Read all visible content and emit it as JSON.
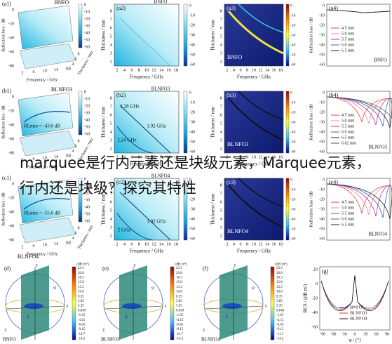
{
  "overlay_text": "marquee是行内元素还是块级元素，Marquee元素，行内还是块级？探究其特性",
  "ticks": {
    "freq": [
      "2",
      "4",
      "6",
      "8",
      "10",
      "12",
      "14",
      "16",
      "18"
    ],
    "freq_3d": [
      "2",
      "6",
      "10",
      "14",
      "18"
    ],
    "rl_3d": [
      "0",
      "-20",
      "-40",
      "-60",
      "-80"
    ],
    "thick_3d": [
      "2",
      "4",
      "6",
      "8"
    ],
    "thickness": [
      "2",
      "3",
      "4",
      "5",
      "6",
      "7",
      "8"
    ],
    "rl": [
      "0",
      "-10",
      "-20",
      "-30",
      "-40",
      "-50",
      "-60"
    ]
  },
  "axis_titles": {
    "frequency": "Frequency / GHz",
    "thickness": "Thickness / mm",
    "reflection_loss": "Reflection loss / dB"
  },
  "rows": [
    {
      "sample": "BNFO",
      "panel_3d": {
        "label": "(a1)"
      },
      "panel_map": {
        "label": "(a2)"
      },
      "panel_dark": {
        "label": "(a3)"
      },
      "panel_curves": {
        "label": "(a4)",
        "legend": [
          "4.5 mm",
          "5.0 mm",
          "5.5 mm",
          "6.0 mm",
          "6.5 mm"
        ]
      }
    },
    {
      "sample": "BLNFO3",
      "panel_3d": {
        "label": "(b1)",
        "annotation": "RLmin = -43.6 dB"
      },
      "panel_map": {
        "label": "(b2)",
        "annotations": [
          "1.28 GHz",
          "1.92 GHz",
          "2.24 GHz"
        ]
      },
      "panel_dark": {
        "label": "(b3)"
      },
      "panel_curves": {
        "label": "(b4)",
        "legend": [
          "4.5 mm",
          "5.0 mm",
          "5.5 mm",
          "6.0 mm",
          "6.5 mm",
          "6.62 mm"
        ]
      }
    },
    {
      "sample": "BLNFO4",
      "panel_3d": {
        "label": "(c1)",
        "annotation": "RLmin = -55.6 dB"
      },
      "panel_map": {
        "label": "(c2)",
        "annotations": [
          "2 GHz",
          "1.92 GHz"
        ]
      },
      "panel_dark": {
        "label": "(c3)"
      },
      "panel_curves": {
        "label": "(c4)",
        "legend": [
          "4.5 mm",
          "5.0 mm",
          "5.5 mm",
          "6.0 mm",
          "6.5 mm"
        ]
      }
    }
  ],
  "rcs_panels": [
    {
      "label": "(d)",
      "sample": "BNFO"
    },
    {
      "label": "(e)",
      "sample": "BLNFO3"
    },
    {
      "label": "(f)",
      "sample": "BLNFO4"
    }
  ],
  "rcs_unit": "(dB m²)",
  "rcs_colorbar": [
    "23.3",
    "20.8",
    "18.3",
    "15.8",
    "13.3",
    "10.8",
    "8.35",
    "5.85",
    "3.35",
    "0.849",
    "-1.65",
    "-4.15",
    "-6.65",
    "-9.15",
    "-11.7",
    "-14.2"
  ],
  "axis_letters": [
    "x",
    "y",
    "z",
    "θ",
    "φ"
  ],
  "rcs_chart": {
    "label": "(g)",
    "y_axis": "RCS / (dB m²)",
    "x_axis": "φ / (°)",
    "yticks": [
      "20",
      "0",
      "-20",
      "-40",
      "-60"
    ],
    "xticks": [
      "-90",
      "-60",
      "-30",
      "0",
      "30",
      "60",
      "90"
    ],
    "legend": [
      "BNFO",
      "BLNFO3",
      "BLNFO4"
    ]
  }
}
